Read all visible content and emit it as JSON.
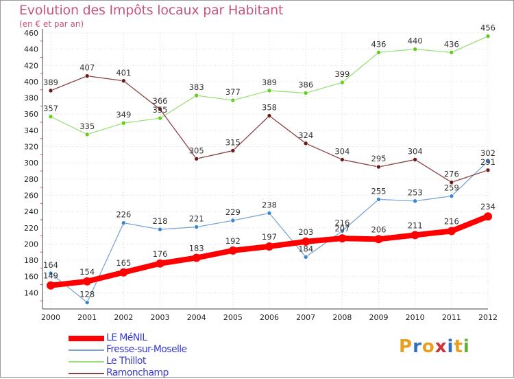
{
  "title": "Evolution des Impôts locaux par Habitant",
  "subtitle": "(en € et par an)",
  "logo": {
    "letters": [
      "P",
      "r",
      "o",
      "x",
      "i",
      "t",
      "i"
    ],
    "colors": [
      "#e8a020",
      "#3070c0",
      "#e8a020",
      "#d03030",
      "#3070c0",
      "#e8a020",
      "#60b030"
    ]
  },
  "chart_data": {
    "type": "line",
    "x": [
      "2000",
      "2001",
      "2002",
      "2003",
      "2004",
      "2005",
      "2006",
      "2007",
      "2008",
      "2009",
      "2010",
      "2011",
      "2012"
    ],
    "ylim": [
      120,
      460
    ],
    "yticks": [
      140,
      160,
      180,
      200,
      220,
      240,
      260,
      280,
      300,
      320,
      340,
      360,
      380,
      400,
      420,
      440,
      460
    ],
    "grid": true,
    "legend_position": "bottom-left",
    "series": [
      {
        "name": "LE MéNIL",
        "color": "#ff0000",
        "marker": "#ff0000",
        "width": 8,
        "values": [
          149,
          154,
          165,
          176,
          183,
          192,
          197,
          203,
          207,
          206,
          211,
          216,
          234
        ]
      },
      {
        "name": "Fresse-sur-Moselle",
        "color": "#7aa6d6",
        "marker": "#3a86d0",
        "width": 1.3,
        "values": [
          164,
          128,
          226,
          218,
          221,
          229,
          238,
          184,
          216,
          255,
          253,
          259,
          302
        ]
      },
      {
        "name": "Le Thillot",
        "color": "#9be07a",
        "marker": "#66cc22",
        "width": 1.3,
        "values": [
          357,
          335,
          349,
          355,
          383,
          377,
          389,
          386,
          399,
          436,
          440,
          436,
          456
        ]
      },
      {
        "name": "Ramonchamp",
        "color": "#8a4040",
        "marker": "#6a1a1a",
        "width": 1.3,
        "values": [
          389,
          407,
          401,
          366,
          305,
          315,
          358,
          324,
          304,
          295,
          304,
          276,
          291
        ]
      }
    ]
  }
}
